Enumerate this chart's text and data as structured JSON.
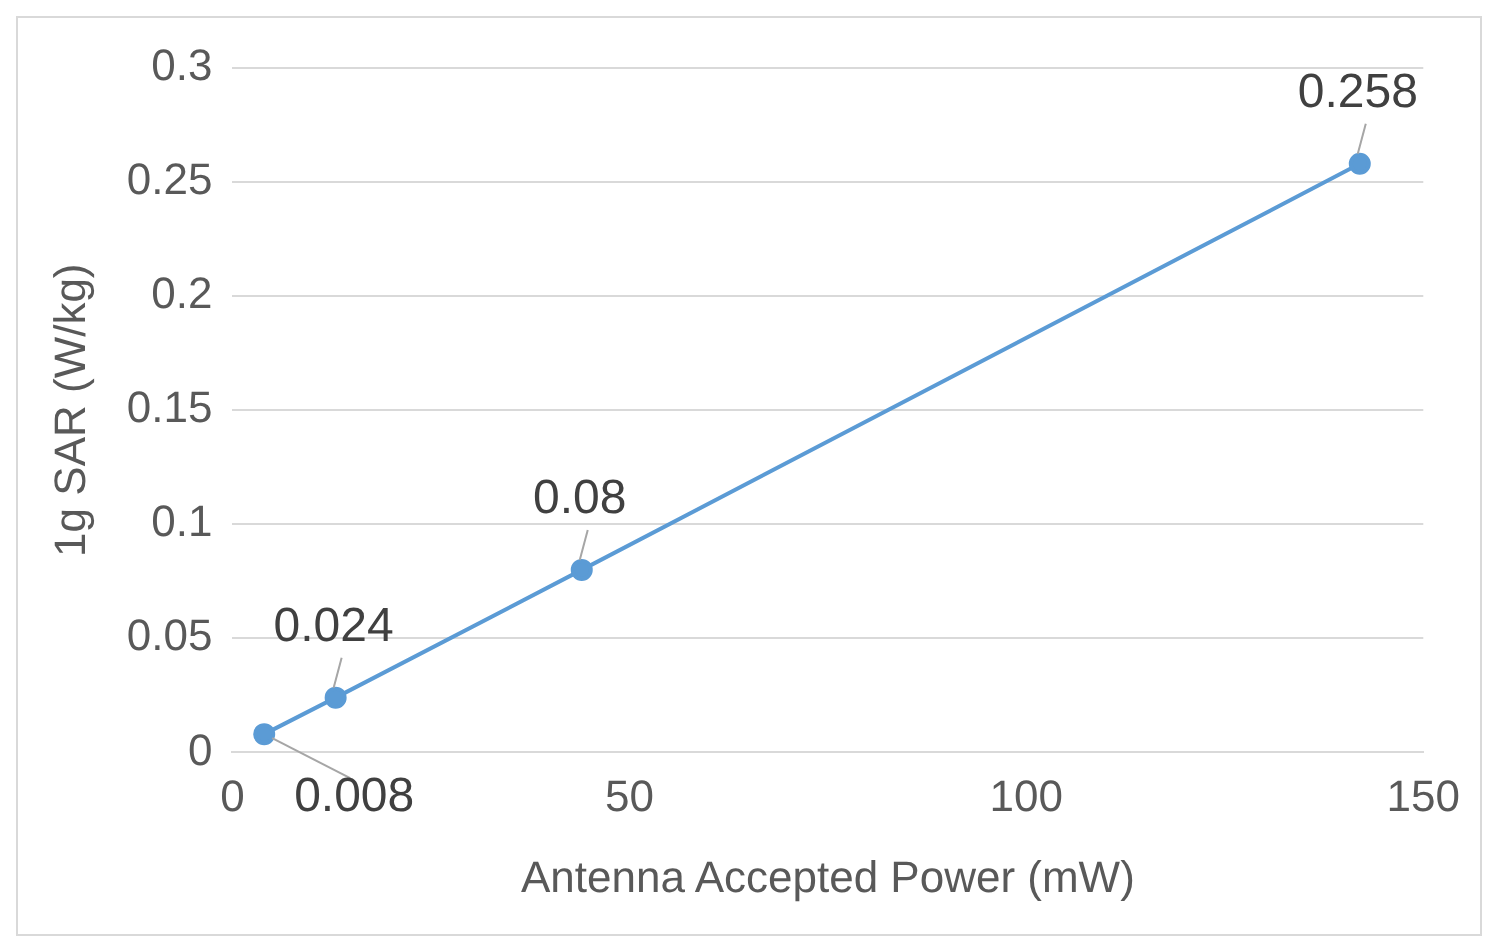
{
  "chart_data": {
    "type": "line",
    "xlabel": "Antenna Accepted Power (mW)",
    "ylabel": "1g SAR (W/kg)",
    "x": [
      4,
      13,
      44,
      142
    ],
    "series": [
      {
        "color": "#5b9bd5",
        "values": [
          0.008,
          0.024,
          0.08,
          0.258
        ]
      }
    ],
    "xlim": [
      0,
      150
    ],
    "xticks": [
      0,
      50,
      100,
      150
    ],
    "ylim": [
      0,
      0.3
    ],
    "yticks": [
      0,
      0.05,
      0.1,
      0.15,
      0.2,
      0.25,
      0.3
    ],
    "grid": "y",
    "legend": false,
    "marker": "circle",
    "line_style": "solid",
    "data_labels": true
  }
}
